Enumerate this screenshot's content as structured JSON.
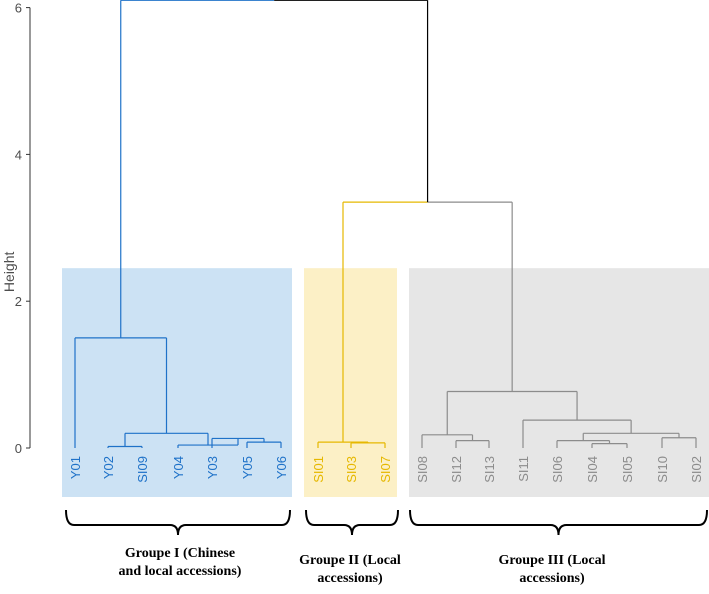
{
  "chart_data": {
    "type": "dendrogram",
    "ylabel": "Height",
    "ylim": [
      0,
      6
    ],
    "yticks": [
      "0",
      "2",
      "4",
      "6"
    ],
    "leaves": [
      {
        "label": "Y01",
        "group": "I"
      },
      {
        "label": "Y02",
        "group": "I"
      },
      {
        "label": "SI09",
        "group": "I"
      },
      {
        "label": "Y04",
        "group": "I"
      },
      {
        "label": "Y03",
        "group": "I"
      },
      {
        "label": "Y05",
        "group": "I"
      },
      {
        "label": "Y06",
        "group": "I"
      },
      {
        "label": "SI01",
        "group": "II"
      },
      {
        "label": "SI03",
        "group": "II"
      },
      {
        "label": "SI07",
        "group": "II"
      },
      {
        "label": "SI08",
        "group": "III"
      },
      {
        "label": "SI12",
        "group": "III"
      },
      {
        "label": "SI13",
        "group": "III"
      },
      {
        "label": "SI11",
        "group": "III"
      },
      {
        "label": "SI06",
        "group": "III"
      },
      {
        "label": "SI04",
        "group": "III"
      },
      {
        "label": "SI05",
        "group": "III"
      },
      {
        "label": "SI10",
        "group": "III"
      },
      {
        "label": "SI02",
        "group": "III"
      }
    ],
    "merges": [
      {
        "id": "m1",
        "left": "Y05",
        "right": "Y06",
        "height": 0.08,
        "color": "#1f72c8"
      },
      {
        "id": "m2",
        "left": "Y03",
        "right": "m1",
        "height": 0.13,
        "color": "#1f72c8"
      },
      {
        "id": "m3",
        "left": "Y04",
        "right": "m2",
        "height": 0.04,
        "color": "#1f72c8"
      },
      {
        "id": "m4",
        "left": "Y02",
        "right": "SI09",
        "height": 0.02,
        "color": "#1f72c8"
      },
      {
        "id": "m5",
        "left": "m4",
        "right": "m3",
        "height": 0.2,
        "color": "#1f72c8"
      },
      {
        "id": "m6",
        "left": "Y01",
        "right": "m5",
        "height": 1.5,
        "color": "#1f72c8"
      },
      {
        "id": "m7",
        "left": "SI03",
        "right": "SI07",
        "height": 0.07,
        "color": "#e6b800"
      },
      {
        "id": "m8",
        "left": "SI01",
        "right": "m7",
        "height": 0.08,
        "color": "#e6b800"
      },
      {
        "id": "m9",
        "left": "SI12",
        "right": "SI13",
        "height": 0.1,
        "color": "#8c8c8c"
      },
      {
        "id": "m10",
        "left": "SI08",
        "right": "m9",
        "height": 0.18,
        "color": "#8c8c8c"
      },
      {
        "id": "m11",
        "left": "SI04",
        "right": "SI05",
        "height": 0.06,
        "color": "#8c8c8c"
      },
      {
        "id": "m12",
        "left": "SI06",
        "right": "m11",
        "height": 0.1,
        "color": "#8c8c8c"
      },
      {
        "id": "m13",
        "left": "SI10",
        "right": "SI02",
        "height": 0.14,
        "color": "#8c8c8c"
      },
      {
        "id": "m14",
        "left": "m12",
        "right": "m13",
        "height": 0.2,
        "color": "#8c8c8c"
      },
      {
        "id": "m15",
        "left": "SI11",
        "right": "m14",
        "height": 0.38,
        "color": "#8c8c8c"
      },
      {
        "id": "m16",
        "left": "m10",
        "right": "m15",
        "height": 0.77,
        "color": "#8c8c8c"
      },
      {
        "id": "m17",
        "left": "m8",
        "right": "m16",
        "height": 3.35,
        "color": "#e6b800",
        "color_right": "#8c8c8c"
      },
      {
        "id": "m18",
        "left": "m6",
        "right": "m17",
        "height": 6.1,
        "color": "#1f72c8",
        "color_right": "#000000"
      }
    ],
    "groups": [
      {
        "id": "I",
        "caption": "Groupe I (Chinese and local accessions)",
        "caption_lines": [
          "Groupe I (Chinese",
          "and local accessions)"
        ],
        "fill": "#cce2f4",
        "color": "#1f72c8"
      },
      {
        "id": "II",
        "caption": "Groupe II (Local accessions)",
        "caption_lines": [
          "Groupe II (Local",
          "accessions)"
        ],
        "fill": "#fcf0c6",
        "color": "#e6b800"
      },
      {
        "id": "III",
        "caption": "Groupe III (Local accessions)",
        "caption_lines": [
          "Groupe III (Local",
          "accessions)"
        ],
        "fill": "#e6e6e6",
        "color": "#8c8c8c"
      }
    ],
    "group_box_top_height": 2.45,
    "grid": false,
    "legend": "none"
  }
}
